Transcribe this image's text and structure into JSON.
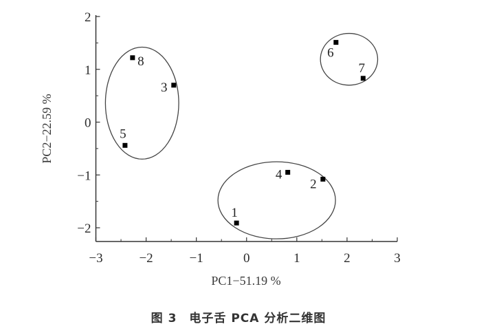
{
  "chart_data": {
    "type": "scatter",
    "xlabel": "PC1−51.19 %",
    "ylabel": "PC2−22.59 %",
    "xlim": [
      -3,
      3
    ],
    "ylim": [
      -2.26,
      2
    ],
    "xticks": [
      "−3",
      "−2",
      "−1",
      "0",
      "1",
      "2",
      "3"
    ],
    "xtick_values": [
      -3,
      -2,
      -1,
      0,
      1,
      2,
      3
    ],
    "yticks": [
      "2",
      "1",
      "0",
      "−1",
      "−2"
    ],
    "ytick_values": [
      2,
      1,
      0,
      -1,
      -2
    ],
    "grid": false,
    "marker": "square",
    "color": "#000000",
    "points": [
      {
        "label": "1",
        "x": -0.2,
        "y": -1.91
      },
      {
        "label": "2",
        "x": 1.52,
        "y": -1.08
      },
      {
        "label": "3",
        "x": -1.45,
        "y": 0.7
      },
      {
        "label": "4",
        "x": 0.82,
        "y": -0.95
      },
      {
        "label": "5",
        "x": -2.42,
        "y": -0.44
      },
      {
        "label": "6",
        "x": 1.78,
        "y": 1.51
      },
      {
        "label": "7",
        "x": 2.32,
        "y": 0.83
      },
      {
        "label": "8",
        "x": -2.27,
        "y": 1.22
      }
    ],
    "groups": [
      {
        "members": [
          "3",
          "5",
          "8"
        ],
        "center": [
          -2.08,
          0.36
        ],
        "radius_x": 0.73,
        "radius_y": 1.06
      },
      {
        "members": [
          "6",
          "7"
        ],
        "center": [
          2.04,
          1.19
        ],
        "radius_x": 0.57,
        "radius_y": 0.49
      },
      {
        "members": [
          "1",
          "2",
          "4"
        ],
        "center": [
          0.6,
          -1.48
        ],
        "radius_x": 1.17,
        "radius_y": 0.73
      }
    ]
  },
  "caption": "图 3　电子舌 PCA 分析二维图"
}
